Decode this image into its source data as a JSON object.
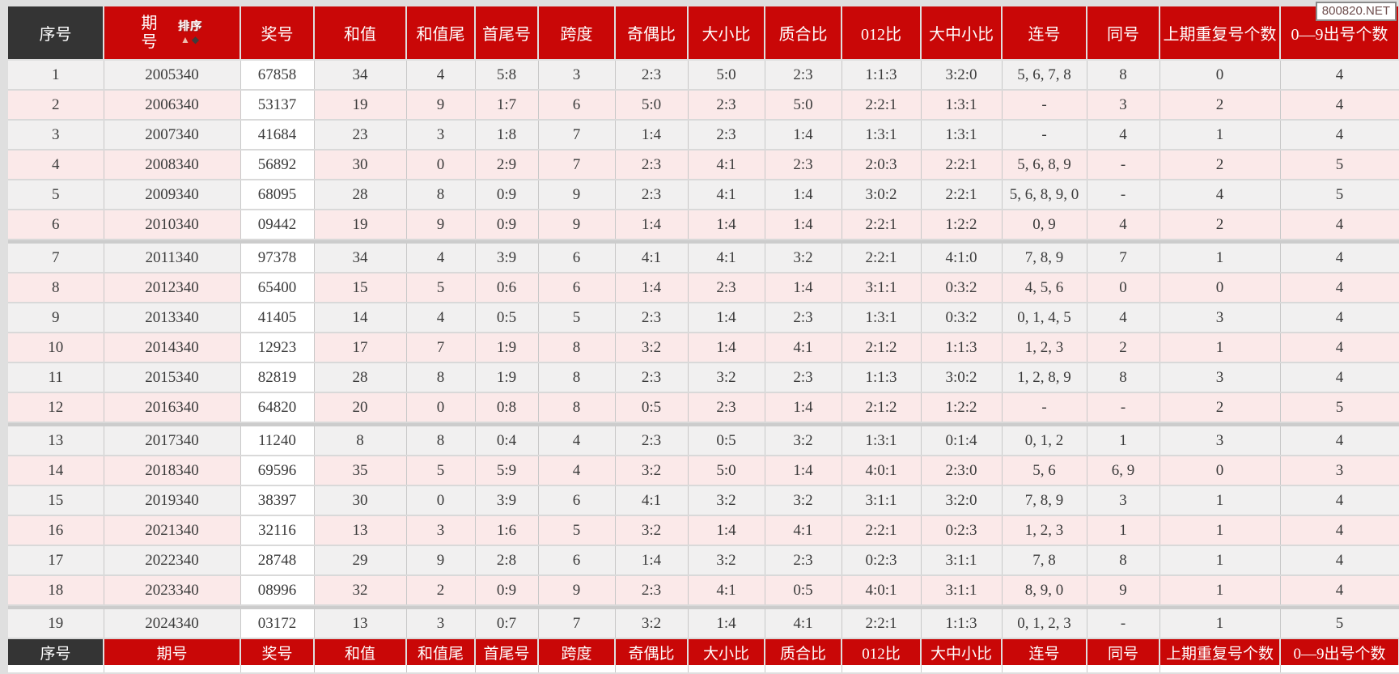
{
  "watermark": {
    "text": "800820.NET"
  },
  "colors": {
    "header_red": "#c90707",
    "serial_dark": "#343434",
    "row_odd": "#f1f0f0",
    "row_even": "#fbe9e9",
    "number_cell": "#ffffff"
  },
  "table": {
    "columns": [
      {
        "key": "serial",
        "label": "序号"
      },
      {
        "key": "period",
        "label": "期号"
      },
      {
        "key": "number",
        "label": "奖号"
      },
      {
        "key": "sum",
        "label": "和值"
      },
      {
        "key": "sum-tail",
        "label": "和值尾"
      },
      {
        "key": "first-last",
        "label": "首尾号"
      },
      {
        "key": "span",
        "label": "跨度"
      },
      {
        "key": "odd-even",
        "label": "奇偶比"
      },
      {
        "key": "big-small",
        "label": "大小比"
      },
      {
        "key": "prime-composite",
        "label": "质合比"
      },
      {
        "key": "zero-one-two",
        "label": "012比"
      },
      {
        "key": "big-mid-small",
        "label": "大中小比"
      },
      {
        "key": "consecutive",
        "label": "连号"
      },
      {
        "key": "same",
        "label": "同号"
      },
      {
        "key": "prev-repeat",
        "label": "上期重复号个数"
      },
      {
        "key": "digit-count",
        "label": "0—9出号个数"
      }
    ],
    "period_header_lines": [
      "期",
      "号"
    ],
    "sort": {
      "label": "排序",
      "up": "▲",
      "down": "◆"
    },
    "group_separator_after": [
      6,
      12,
      18
    ],
    "rows": [
      [
        "1",
        "2005340",
        "67858",
        "34",
        "4",
        "5:8",
        "3",
        "2:3",
        "5:0",
        "2:3",
        "1:1:3",
        "3:2:0",
        "5, 6, 7, 8",
        "8",
        "0",
        "4"
      ],
      [
        "2",
        "2006340",
        "53137",
        "19",
        "9",
        "1:7",
        "6",
        "5:0",
        "2:3",
        "5:0",
        "2:2:1",
        "1:3:1",
        "-",
        "3",
        "2",
        "4"
      ],
      [
        "3",
        "2007340",
        "41684",
        "23",
        "3",
        "1:8",
        "7",
        "1:4",
        "2:3",
        "1:4",
        "1:3:1",
        "1:3:1",
        "-",
        "4",
        "1",
        "4"
      ],
      [
        "4",
        "2008340",
        "56892",
        "30",
        "0",
        "2:9",
        "7",
        "2:3",
        "4:1",
        "2:3",
        "2:0:3",
        "2:2:1",
        "5, 6, 8, 9",
        "-",
        "2",
        "5"
      ],
      [
        "5",
        "2009340",
        "68095",
        "28",
        "8",
        "0:9",
        "9",
        "2:3",
        "4:1",
        "1:4",
        "3:0:2",
        "2:2:1",
        "5, 6, 8, 9, 0",
        "-",
        "4",
        "5"
      ],
      [
        "6",
        "2010340",
        "09442",
        "19",
        "9",
        "0:9",
        "9",
        "1:4",
        "1:4",
        "1:4",
        "2:2:1",
        "1:2:2",
        "0, 9",
        "4",
        "2",
        "4"
      ],
      [
        "7",
        "2011340",
        "97378",
        "34",
        "4",
        "3:9",
        "6",
        "4:1",
        "4:1",
        "3:2",
        "2:2:1",
        "4:1:0",
        "7, 8, 9",
        "7",
        "1",
        "4"
      ],
      [
        "8",
        "2012340",
        "65400",
        "15",
        "5",
        "0:6",
        "6",
        "1:4",
        "2:3",
        "1:4",
        "3:1:1",
        "0:3:2",
        "4, 5, 6",
        "0",
        "0",
        "4"
      ],
      [
        "9",
        "2013340",
        "41405",
        "14",
        "4",
        "0:5",
        "5",
        "2:3",
        "1:4",
        "2:3",
        "1:3:1",
        "0:3:2",
        "0, 1, 4, 5",
        "4",
        "3",
        "4"
      ],
      [
        "10",
        "2014340",
        "12923",
        "17",
        "7",
        "1:9",
        "8",
        "3:2",
        "1:4",
        "4:1",
        "2:1:2",
        "1:1:3",
        "1, 2, 3",
        "2",
        "1",
        "4"
      ],
      [
        "11",
        "2015340",
        "82819",
        "28",
        "8",
        "1:9",
        "8",
        "2:3",
        "3:2",
        "2:3",
        "1:1:3",
        "3:0:2",
        "1, 2, 8, 9",
        "8",
        "3",
        "4"
      ],
      [
        "12",
        "2016340",
        "64820",
        "20",
        "0",
        "0:8",
        "8",
        "0:5",
        "2:3",
        "1:4",
        "2:1:2",
        "1:2:2",
        "-",
        "-",
        "2",
        "5"
      ],
      [
        "13",
        "2017340",
        "11240",
        "8",
        "8",
        "0:4",
        "4",
        "2:3",
        "0:5",
        "3:2",
        "1:3:1",
        "0:1:4",
        "0, 1, 2",
        "1",
        "3",
        "4"
      ],
      [
        "14",
        "2018340",
        "69596",
        "35",
        "5",
        "5:9",
        "4",
        "3:2",
        "5:0",
        "1:4",
        "4:0:1",
        "2:3:0",
        "5, 6",
        "6, 9",
        "0",
        "3"
      ],
      [
        "15",
        "2019340",
        "38397",
        "30",
        "0",
        "3:9",
        "6",
        "4:1",
        "3:2",
        "3:2",
        "3:1:1",
        "3:2:0",
        "7, 8, 9",
        "3",
        "1",
        "4"
      ],
      [
        "16",
        "2021340",
        "32116",
        "13",
        "3",
        "1:6",
        "5",
        "3:2",
        "1:4",
        "4:1",
        "2:2:1",
        "0:2:3",
        "1, 2, 3",
        "1",
        "1",
        "4"
      ],
      [
        "17",
        "2022340",
        "28748",
        "29",
        "9",
        "2:8",
        "6",
        "1:4",
        "3:2",
        "2:3",
        "0:2:3",
        "3:1:1",
        "7, 8",
        "8",
        "1",
        "4"
      ],
      [
        "18",
        "2023340",
        "08996",
        "32",
        "2",
        "0:9",
        "9",
        "2:3",
        "4:1",
        "0:5",
        "4:0:1",
        "3:1:1",
        "8, 9, 0",
        "9",
        "1",
        "4"
      ],
      [
        "19",
        "2024340",
        "03172",
        "13",
        "3",
        "0:7",
        "7",
        "3:2",
        "1:4",
        "4:1",
        "2:2:1",
        "1:1:3",
        "0, 1, 2, 3",
        "-",
        "1",
        "5"
      ]
    ]
  }
}
